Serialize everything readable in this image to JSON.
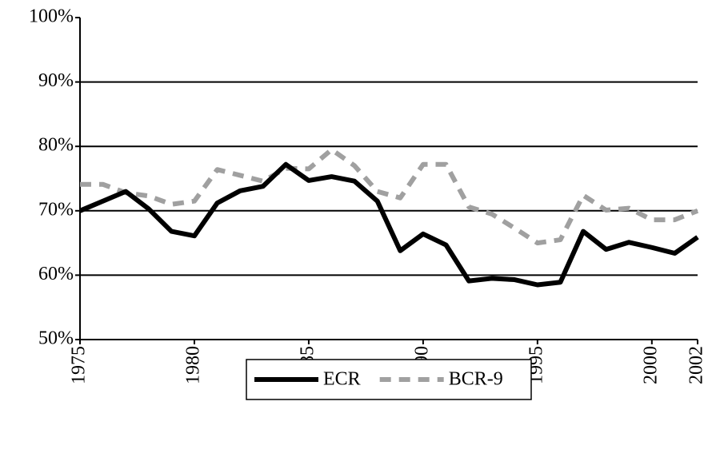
{
  "chart_data": {
    "type": "line",
    "x": [
      1975,
      1976,
      1977,
      1978,
      1979,
      1980,
      1981,
      1982,
      1983,
      1984,
      1985,
      1986,
      1987,
      1988,
      1989,
      1990,
      1991,
      1992,
      1993,
      1994,
      1995,
      1996,
      1997,
      1998,
      1999,
      2000,
      2001,
      2002
    ],
    "series": [
      {
        "name": "ECR",
        "color": "#000000",
        "dash": "solid",
        "values": [
          70,
          71.5,
          73,
          70.3,
          66.8,
          66.1,
          71.2,
          73.1,
          73.8,
          77.2,
          74.7,
          75.3,
          74.6,
          71.5,
          63.8,
          66.4,
          64.7,
          59.1,
          59.5,
          59.3,
          58.5,
          58.9,
          66.8,
          64,
          65.1,
          64.3,
          63.4,
          65.9
        ]
      },
      {
        "name": "BCR-9",
        "color": "#a0a0a0",
        "dash": "dashed",
        "values": [
          74.1,
          74.1,
          72.8,
          72.3,
          71,
          71.5,
          76.4,
          75.5,
          74.6,
          76.6,
          76.5,
          79.5,
          77,
          73,
          72,
          77.2,
          77.2,
          70.6,
          69.5,
          67.3,
          65,
          65.5,
          72.4,
          70.1,
          70.4,
          68.6,
          68.6,
          70
        ]
      }
    ],
    "xlim": [
      1975,
      2002
    ],
    "xticks": [
      1975,
      1980,
      1985,
      1990,
      1995,
      2000,
      2002
    ],
    "ylim": [
      50,
      100
    ],
    "yticks": [
      {
        "value": 50,
        "label": "50%"
      },
      {
        "value": 60,
        "label": "60%"
      },
      {
        "value": 70,
        "label": "70%"
      },
      {
        "value": 80,
        "label": "80%"
      },
      {
        "value": 90,
        "label": "90%"
      },
      {
        "value": 100,
        "label": "100%"
      }
    ],
    "grid": true,
    "legend": "bottom"
  }
}
